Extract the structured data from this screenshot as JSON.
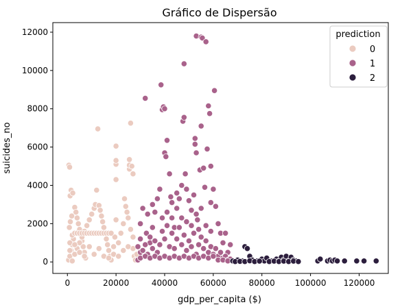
{
  "chart_data": {
    "type": "scatter",
    "title": "Gráfico de Dispersão",
    "xlabel": "gdp_per_capita ($)",
    "ylabel": "suicides_no",
    "xlim": [
      -6000,
      132000
    ],
    "ylim": [
      -600,
      12500
    ],
    "xticks": [
      0,
      20000,
      40000,
      60000,
      80000,
      100000,
      120000
    ],
    "yticks": [
      0,
      2000,
      4000,
      6000,
      8000,
      10000,
      12000
    ],
    "legend": {
      "title": "prediction",
      "position": "top-right"
    },
    "series": [
      {
        "name": "0",
        "color": "#ebcbc0",
        "points": [
          [
            500,
            100
          ],
          [
            1000,
            300
          ],
          [
            1500,
            600
          ],
          [
            2000,
            900
          ],
          [
            2500,
            1200
          ],
          [
            3000,
            1500
          ],
          [
            800,
            1800
          ],
          [
            1200,
            2100
          ],
          [
            1800,
            2400
          ],
          [
            600,
            5050
          ],
          [
            900,
            4950
          ],
          [
            1100,
            3450
          ],
          [
            1500,
            3750
          ],
          [
            2200,
            3600
          ],
          [
            3000,
            2850
          ],
          [
            3500,
            2600
          ],
          [
            4000,
            2300
          ],
          [
            4500,
            2000
          ],
          [
            5000,
            1700
          ],
          [
            5500,
            1400
          ],
          [
            6000,
            1100
          ],
          [
            6500,
            800
          ],
          [
            7000,
            500
          ],
          [
            7500,
            200
          ],
          [
            2000,
            50
          ],
          [
            3000,
            400
          ],
          [
            4000,
            700
          ],
          [
            5000,
            1000
          ],
          [
            6000,
            1300
          ],
          [
            7000,
            1600
          ],
          [
            8000,
            1900
          ],
          [
            9000,
            2200
          ],
          [
            10000,
            2500
          ],
          [
            11000,
            2800
          ],
          [
            11500,
            3000
          ],
          [
            12000,
            3750
          ],
          [
            12500,
            6950
          ],
          [
            13000,
            2950
          ],
          [
            13500,
            2700
          ],
          [
            14000,
            2400
          ],
          [
            14500,
            2100
          ],
          [
            15000,
            1800
          ],
          [
            15500,
            1500
          ],
          [
            16000,
            1200
          ],
          [
            16500,
            900
          ],
          [
            17000,
            600
          ],
          [
            17500,
            300
          ],
          [
            18000,
            100
          ],
          [
            19000,
            400
          ],
          [
            19500,
            1300
          ],
          [
            20000,
            2200
          ],
          [
            20000,
            4300
          ],
          [
            20000,
            5100
          ],
          [
            20000,
            5300
          ],
          [
            20000,
            6050
          ],
          [
            21000,
            1000
          ],
          [
            22000,
            1500
          ],
          [
            23000,
            2000
          ],
          [
            23500,
            3300
          ],
          [
            24000,
            2900
          ],
          [
            24500,
            2600
          ],
          [
            25000,
            2300
          ],
          [
            25500,
            4850
          ],
          [
            25500,
            5050
          ],
          [
            25500,
            5350
          ],
          [
            26000,
            7250
          ],
          [
            26500,
            5000
          ],
          [
            27000,
            4600
          ],
          [
            26000,
            1700
          ],
          [
            27000,
            700
          ],
          [
            27500,
            300
          ],
          [
            28000,
            100
          ],
          [
            1000,
            1000
          ],
          [
            2000,
            1400
          ],
          [
            3000,
            1500
          ],
          [
            4000,
            1500
          ],
          [
            5000,
            1500
          ],
          [
            6000,
            1500
          ],
          [
            7000,
            1500
          ],
          [
            8000,
            1500
          ],
          [
            9000,
            1500
          ],
          [
            10000,
            1500
          ],
          [
            11000,
            1500
          ],
          [
            12000,
            1500
          ],
          [
            13000,
            1500
          ],
          [
            14000,
            1500
          ],
          [
            15000,
            1500
          ],
          [
            16000,
            1500
          ],
          [
            17000,
            1500
          ],
          [
            18000,
            1500
          ],
          [
            1000,
            600
          ],
          [
            3000,
            900
          ],
          [
            5000,
            500
          ],
          [
            7000,
            300
          ],
          [
            9000,
            800
          ],
          [
            11000,
            400
          ],
          [
            13000,
            700
          ],
          [
            15000,
            300
          ],
          [
            17000,
            200
          ],
          [
            19000,
            800
          ],
          [
            21000,
            300
          ],
          [
            23000,
            600
          ],
          [
            25000,
            800
          ],
          [
            27000,
            1300
          ],
          [
            28500,
            400
          ]
        ]
      },
      {
        "name": "1",
        "color": "#a9628b",
        "points": [
          [
            29000,
            100
          ],
          [
            30000,
            500
          ],
          [
            30000,
            2000
          ],
          [
            31000,
            2800
          ],
          [
            32000,
            8550
          ],
          [
            32500,
            1500
          ],
          [
            33000,
            2500
          ],
          [
            34000,
            1000
          ],
          [
            35000,
            3000
          ],
          [
            36000,
            2600
          ],
          [
            37000,
            3300
          ],
          [
            38000,
            3800
          ],
          [
            38500,
            9250
          ],
          [
            39000,
            7950
          ],
          [
            39500,
            8100
          ],
          [
            40000,
            8000
          ],
          [
            40000,
            5700
          ],
          [
            40500,
            5500
          ],
          [
            41000,
            6350
          ],
          [
            42000,
            4600
          ],
          [
            42500,
            3400
          ],
          [
            43000,
            2300
          ],
          [
            44000,
            1800
          ],
          [
            45000,
            2800
          ],
          [
            46000,
            3300
          ],
          [
            47000,
            4000
          ],
          [
            47500,
            7350
          ],
          [
            48000,
            7550
          ],
          [
            48000,
            10350
          ],
          [
            48500,
            4600
          ],
          [
            49000,
            3800
          ],
          [
            50000,
            3200
          ],
          [
            51000,
            2700
          ],
          [
            52000,
            3500
          ],
          [
            52500,
            6150
          ],
          [
            52500,
            6450
          ],
          [
            53000,
            5700
          ],
          [
            53000,
            11800
          ],
          [
            53500,
            2200
          ],
          [
            54000,
            1700
          ],
          [
            54500,
            4800
          ],
          [
            55000,
            7100
          ],
          [
            55000,
            11750
          ],
          [
            55500,
            11700
          ],
          [
            56000,
            4900
          ],
          [
            56500,
            3900
          ],
          [
            57000,
            11500
          ],
          [
            57500,
            5900
          ],
          [
            58000,
            8150
          ],
          [
            58500,
            7750
          ],
          [
            59000,
            5000
          ],
          [
            59000,
            3100
          ],
          [
            60000,
            3800
          ],
          [
            60500,
            8950
          ],
          [
            61000,
            2900
          ],
          [
            62000,
            2000
          ],
          [
            63000,
            1500
          ],
          [
            64000,
            1000
          ],
          [
            65000,
            1500
          ],
          [
            66000,
            500
          ],
          [
            67000,
            900
          ],
          [
            29000,
            800
          ],
          [
            30000,
            1200
          ],
          [
            31000,
            600
          ],
          [
            32000,
            900
          ],
          [
            33000,
            400
          ],
          [
            34000,
            1300
          ],
          [
            35000,
            700
          ],
          [
            36000,
            1100
          ],
          [
            37000,
            500
          ],
          [
            38000,
            900
          ],
          [
            39000,
            1600
          ],
          [
            40000,
            1200
          ],
          [
            41000,
            1900
          ],
          [
            42000,
            800
          ],
          [
            43000,
            1500
          ],
          [
            44000,
            700
          ],
          [
            45000,
            1200
          ],
          [
            46000,
            1800
          ],
          [
            47000,
            900
          ],
          [
            48000,
            1400
          ],
          [
            49000,
            600
          ],
          [
            50000,
            1100
          ],
          [
            51000,
            800
          ],
          [
            52000,
            1500
          ],
          [
            53000,
            400
          ],
          [
            54000,
            900
          ],
          [
            55000,
            1300
          ],
          [
            56000,
            700
          ],
          [
            57000,
            1100
          ],
          [
            58000,
            500
          ],
          [
            59000,
            800
          ],
          [
            60000,
            400
          ],
          [
            61000,
            700
          ],
          [
            62000,
            300
          ],
          [
            63000,
            500
          ],
          [
            64000,
            200
          ],
          [
            65000,
            300
          ],
          [
            66000,
            100
          ],
          [
            67000,
            150
          ],
          [
            30000,
            200
          ],
          [
            32000,
            300
          ],
          [
            34000,
            200
          ],
          [
            36000,
            300
          ],
          [
            38000,
            200
          ],
          [
            40000,
            300
          ],
          [
            42000,
            200
          ],
          [
            44000,
            300
          ],
          [
            46000,
            200
          ],
          [
            48000,
            300
          ],
          [
            50000,
            200
          ],
          [
            52000,
            300
          ],
          [
            54000,
            200
          ],
          [
            56000,
            300
          ],
          [
            58000,
            200
          ],
          [
            60000,
            300
          ],
          [
            62000,
            100
          ],
          [
            64000,
            100
          ],
          [
            66000,
            50
          ],
          [
            35000,
            1800
          ],
          [
            39000,
            2300
          ],
          [
            41000,
            2600
          ],
          [
            43000,
            3100
          ],
          [
            45000,
            3600
          ],
          [
            47000,
            2300
          ],
          [
            49000,
            2100
          ],
          [
            51000,
            1900
          ],
          [
            53000,
            2500
          ],
          [
            55000,
            2800
          ],
          [
            57000,
            1900
          ],
          [
            59000,
            1600
          ]
        ]
      },
      {
        "name": "2",
        "color": "#2c1e3d",
        "points": [
          [
            68000,
            50
          ],
          [
            70000,
            100
          ],
          [
            72000,
            50
          ],
          [
            73000,
            800
          ],
          [
            74000,
            700
          ],
          [
            75000,
            300
          ],
          [
            76000,
            100
          ],
          [
            78000,
            50
          ],
          [
            80000,
            150
          ],
          [
            81000,
            50
          ],
          [
            82000,
            200
          ],
          [
            84000,
            50
          ],
          [
            86000,
            150
          ],
          [
            87000,
            50
          ],
          [
            88000,
            250
          ],
          [
            89000,
            100
          ],
          [
            90000,
            300
          ],
          [
            91000,
            50
          ],
          [
            92000,
            250
          ],
          [
            93000,
            100
          ],
          [
            94000,
            50
          ],
          [
            103000,
            50
          ],
          [
            104000,
            150
          ],
          [
            107000,
            50
          ],
          [
            108000,
            100
          ],
          [
            109000,
            50
          ],
          [
            110000,
            100
          ],
          [
            111000,
            50
          ],
          [
            114000,
            50
          ],
          [
            119000,
            50
          ],
          [
            122000,
            50
          ],
          [
            127000,
            50
          ],
          [
            69000,
            20
          ],
          [
            71000,
            30
          ],
          [
            73000,
            20
          ],
          [
            75000,
            60
          ],
          [
            77000,
            20
          ],
          [
            79000,
            40
          ],
          [
            83000,
            20
          ],
          [
            85000,
            40
          ],
          [
            87000,
            20
          ],
          [
            89000,
            40
          ],
          [
            91000,
            20
          ],
          [
            93000,
            40
          ],
          [
            95000,
            20
          ]
        ]
      }
    ]
  }
}
